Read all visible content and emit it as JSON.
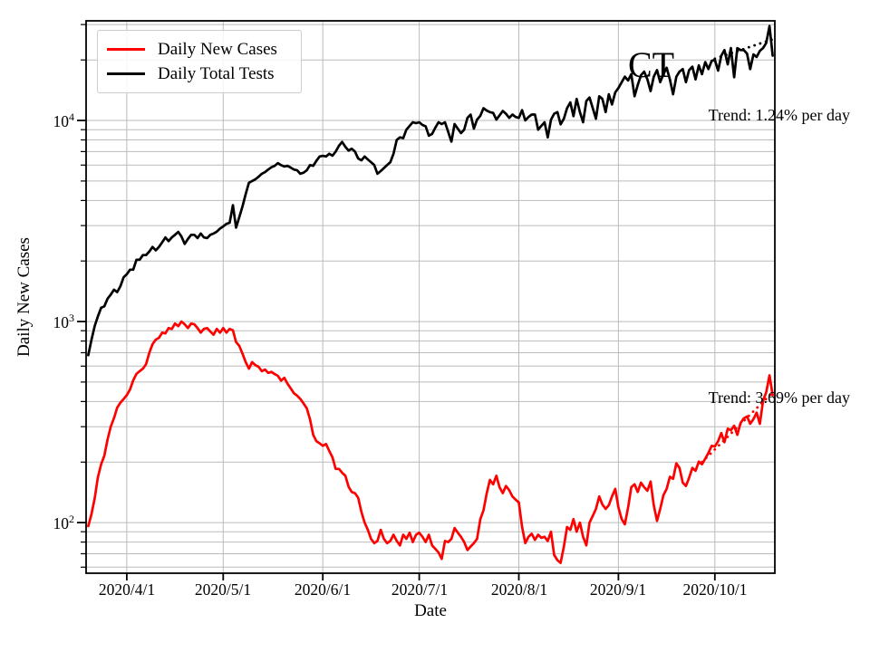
{
  "chart_data": {
    "type": "line",
    "title": "CT",
    "xlabel": "Date",
    "ylabel": "Daily New Cases",
    "y_scale": "log",
    "ylim": [
      56,
      31300
    ],
    "grid": true,
    "legend_position": "upper-left",
    "x_start_date": "2020/3/20",
    "x_end_date": "2020/10/19",
    "x_ticks": [
      {
        "day_index": 12,
        "label": "2020/4/1"
      },
      {
        "day_index": 42,
        "label": "2020/5/1"
      },
      {
        "day_index": 73,
        "label": "2020/6/1"
      },
      {
        "day_index": 103,
        "label": "2020/7/1"
      },
      {
        "day_index": 134,
        "label": "2020/8/1"
      },
      {
        "day_index": 165,
        "label": "2020/9/1"
      },
      {
        "day_index": 195,
        "label": "2020/10/1"
      }
    ],
    "y_major_ticks": [
      {
        "value": 100,
        "exponent": 2
      },
      {
        "value": 1000,
        "exponent": 3
      },
      {
        "value": 10000,
        "exponent": 4
      }
    ],
    "y_minor_ticks": [
      60,
      70,
      80,
      90,
      200,
      300,
      400,
      500,
      600,
      700,
      800,
      900,
      2000,
      3000,
      4000,
      5000,
      6000,
      7000,
      8000,
      9000,
      20000,
      30000
    ],
    "series": [
      {
        "name": "Daily New Cases",
        "color": "#ff0000",
        "values": [
          96,
          110,
          132,
          168,
          195,
          215,
          259,
          300,
          331,
          373,
          395,
          412,
          430,
          459,
          510,
          549,
          566,
          583,
          614,
          700,
          771,
          813,
          829,
          881,
          873,
          928,
          918,
          977,
          948,
          1000,
          969,
          928,
          977,
          969,
          928,
          881,
          919,
          928,
          891,
          860,
          919,
          880,
          928,
          881,
          919,
          905,
          790,
          757,
          692,
          628,
          583,
          628,
          607,
          596,
          566,
          577,
          555,
          562,
          548,
          537,
          508,
          525,
          491,
          465,
          440,
          428,
          412,
          391,
          370,
          326,
          273,
          254,
          248,
          241,
          246,
          227,
          211,
          185,
          185,
          177,
          171,
          151,
          142,
          140,
          133,
          113,
          100,
          92,
          83,
          79,
          81,
          92,
          83,
          79,
          81,
          87,
          81,
          77,
          87,
          83,
          89,
          80,
          87,
          89,
          85,
          80,
          87,
          77,
          74,
          71,
          66,
          81,
          80,
          83,
          94,
          89,
          85,
          80,
          73,
          76,
          79,
          83,
          104,
          115,
          140,
          163,
          155,
          171,
          150,
          140,
          152,
          145,
          135,
          130,
          126,
          95,
          79,
          85,
          88,
          82,
          87,
          84,
          85,
          81,
          90,
          69,
          65,
          63,
          76,
          95,
          92,
          104,
          90,
          100,
          85,
          77,
          100,
          108,
          117,
          135,
          123,
          117,
          122,
          135,
          147,
          119,
          104,
          98,
          119,
          150,
          155,
          142,
          158,
          150,
          144,
          160,
          122,
          102,
          117,
          137,
          147,
          169,
          165,
          197,
          187,
          158,
          152,
          167,
          187,
          181,
          201,
          195,
          208,
          222,
          241,
          239,
          254,
          279,
          251,
          293,
          288,
          303,
          273,
          313,
          330,
          337,
          310,
          327,
          352,
          310,
          404,
          445,
          540,
          430
        ]
      },
      {
        "name": "Daily Total Tests",
        "color": "#000000",
        "values": [
          680,
          810,
          950,
          1060,
          1170,
          1190,
          1300,
          1360,
          1440,
          1400,
          1500,
          1660,
          1717,
          1810,
          1810,
          2030,
          2030,
          2140,
          2140,
          2230,
          2350,
          2260,
          2350,
          2480,
          2620,
          2510,
          2620,
          2700,
          2790,
          2650,
          2430,
          2570,
          2700,
          2700,
          2600,
          2740,
          2620,
          2600,
          2700,
          2740,
          2800,
          2900,
          2970,
          3060,
          3100,
          3790,
          2930,
          3300,
          3740,
          4300,
          4900,
          5000,
          5100,
          5250,
          5430,
          5530,
          5700,
          5850,
          5950,
          6140,
          6000,
          5900,
          5950,
          5830,
          5700,
          5650,
          5430,
          5500,
          5650,
          6000,
          5950,
          6300,
          6620,
          6670,
          6620,
          6830,
          6680,
          7000,
          7480,
          7820,
          7400,
          7080,
          7240,
          7000,
          6470,
          6330,
          6620,
          6400,
          6200,
          6000,
          5430,
          5600,
          5800,
          6000,
          6200,
          6830,
          8000,
          8240,
          8160,
          9000,
          9400,
          9800,
          9700,
          9800,
          9500,
          9350,
          8400,
          8570,
          9200,
          9800,
          9600,
          9800,
          8800,
          7850,
          9600,
          9100,
          8650,
          9000,
          10300,
          10700,
          9100,
          10100,
          10550,
          11500,
          11200,
          11000,
          10900,
          10100,
          10600,
          11150,
          10800,
          10300,
          10700,
          10400,
          10300,
          11260,
          10000,
          10400,
          10700,
          10700,
          9000,
          9400,
          9800,
          8240,
          10100,
          10800,
          11000,
          9570,
          10200,
          11500,
          12300,
          10500,
          12800,
          11000,
          9800,
          12500,
          13000,
          11500,
          10200,
          13200,
          12800,
          11000,
          13500,
          12000,
          13800,
          14500,
          15500,
          16500,
          15800,
          17000,
          13200,
          15000,
          16800,
          17500,
          16000,
          14000,
          16500,
          17800,
          15500,
          17000,
          18300,
          16000,
          13500,
          16500,
          17500,
          18000,
          15500,
          17800,
          18500,
          16000,
          18800,
          17000,
          19500,
          18000,
          19800,
          20000,
          17700,
          21000,
          22400,
          19000,
          22900,
          16400,
          22900,
          22400,
          22400,
          21500,
          18000,
          21300,
          20700,
          22200,
          22900,
          24300,
          29500,
          21000
        ]
      }
    ],
    "trend_lines": [
      {
        "series": "Daily Total Tests",
        "label": "Trend: 1.24% per day",
        "pct_per_day": 1.24,
        "color": "#000000",
        "start_day_index": 195,
        "start_value": 20300,
        "end_day_index": 213.5,
        "end_value": 25500
      },
      {
        "series": "Daily New Cases",
        "label": "Trend: 3.69% per day",
        "pct_per_day": 3.69,
        "color": "#ff0000",
        "start_day_index": 191,
        "start_value": 200,
        "end_day_index": 213.5,
        "end_value": 452
      }
    ]
  }
}
